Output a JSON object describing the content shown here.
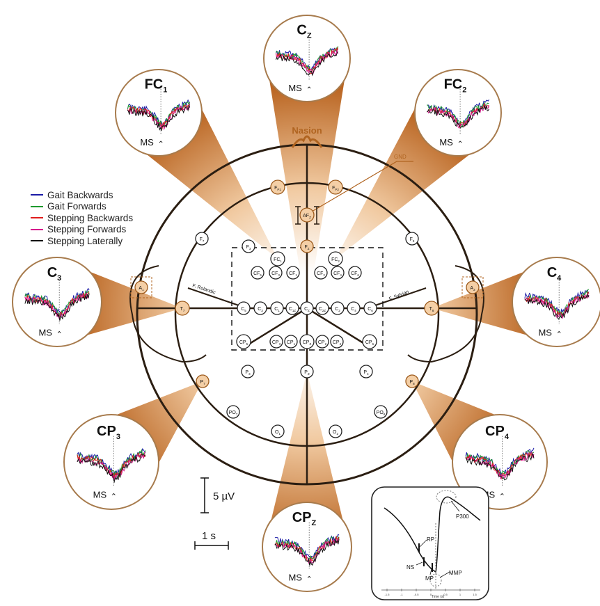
{
  "title": "",
  "legend": [
    {
      "label": "Gait Backwards",
      "color": "#1a1aa6"
    },
    {
      "label": "Gait Forwards",
      "color": "#1e9a2e"
    },
    {
      "label": "Stepping Backwards",
      "color": "#e01b1b"
    },
    {
      "label": "Stepping Forwards",
      "color": "#d6188c"
    },
    {
      "label": "Stepping Laterally",
      "color": "#111111"
    }
  ],
  "colors": {
    "accent": "#c1641c",
    "accent_light": "#f2d2b2",
    "ring": "#3a2a1a",
    "circle_border": "#a87a4a"
  },
  "head": {
    "nasion_label": "Nasion",
    "gnd_label": "GND",
    "rolandic_left": "F. Rolandic",
    "rolandic_right": "F. Sylvian"
  },
  "electrodes": {
    "fp1": {
      "main": "F",
      "sub": "P1"
    },
    "fp2": {
      "main": "F",
      "sub": "P2"
    },
    "afz": {
      "main": "AF",
      "sub": "Z"
    },
    "f7": {
      "main": "F",
      "sub": "7"
    },
    "f3": {
      "main": "F",
      "sub": "3"
    },
    "fz": {
      "main": "F",
      "sub": "Z"
    },
    "f8": {
      "main": "F",
      "sub": "8"
    },
    "fc1": {
      "main": "FC",
      "sub": "1"
    },
    "fc2": {
      "main": "FC",
      "sub": "2"
    },
    "cf5": {
      "main": "CF",
      "sub": "5"
    },
    "cf3": {
      "main": "CF",
      "sub": "3"
    },
    "cf1": {
      "main": "CF",
      "sub": "1"
    },
    "cf2": {
      "main": "CF",
      "sub": "2"
    },
    "cf4": {
      "main": "CF",
      "sub": "4"
    },
    "cf6": {
      "main": "CF",
      "sub": "6"
    },
    "t7": {
      "main": "T",
      "sub": "7"
    },
    "c5": {
      "main": "C",
      "sub": "5"
    },
    "c3": {
      "main": "C",
      "sub": "3"
    },
    "c1": {
      "main": "C",
      "sub": "1"
    },
    "c1z": {
      "main": "C",
      "sub": "1Z"
    },
    "cz": {
      "main": "C",
      "sub": "Z"
    },
    "c2z": {
      "main": "C",
      "sub": "2Z"
    },
    "c2": {
      "main": "C",
      "sub": "2"
    },
    "c4": {
      "main": "C",
      "sub": "4"
    },
    "c6": {
      "main": "C",
      "sub": "6"
    },
    "t8": {
      "main": "T",
      "sub": "8"
    },
    "cp5": {
      "main": "CP",
      "sub": "5"
    },
    "cp3": {
      "main": "CP",
      "sub": "3"
    },
    "cp1": {
      "main": "CP",
      "sub": "1"
    },
    "cpz": {
      "main": "CP",
      "sub": "Z"
    },
    "cp2": {
      "main": "CP",
      "sub": "2"
    },
    "cp4": {
      "main": "CP",
      "sub": "4"
    },
    "cp6": {
      "main": "CP",
      "sub": "6"
    },
    "a1": {
      "main": "A",
      "sub": "1"
    },
    "a2": {
      "main": "A",
      "sub": "2"
    },
    "p7": {
      "main": "P",
      "sub": "7"
    },
    "p3": {
      "main": "P",
      "sub": "3"
    },
    "pz": {
      "main": "P",
      "sub": "Z"
    },
    "p4": {
      "main": "P",
      "sub": "4"
    },
    "p8": {
      "main": "P",
      "sub": "8"
    },
    "po7": {
      "main": "PO",
      "sub": "7"
    },
    "o1": {
      "main": "O",
      "sub": "1"
    },
    "o2": {
      "main": "O",
      "sub": "2"
    },
    "po8": {
      "main": "PO",
      "sub": "8"
    }
  },
  "panels": {
    "cz": {
      "main": "C",
      "sub": "Z",
      "ms": "MS"
    },
    "fc1": {
      "main": "FC",
      "sub": "1",
      "ms": "MS"
    },
    "fc2": {
      "main": "FC",
      "sub": "2",
      "ms": "MS"
    },
    "c3": {
      "main": "C",
      "sub": "3",
      "ms": "MS"
    },
    "c4": {
      "main": "C",
      "sub": "4",
      "ms": "MS"
    },
    "cp3": {
      "main": "CP",
      "sub": "3",
      "ms": "MS"
    },
    "cp4": {
      "main": "CP",
      "sub": "4",
      "ms": "MS"
    },
    "cpz": {
      "main": "CP",
      "sub": "Z",
      "ms": "MS"
    }
  },
  "scale": {
    "voltage": "5 µV",
    "time": "1 s"
  },
  "inset": {
    "labels": {
      "rp": "RP",
      "ns": "NS",
      "mp": "MP",
      "mmp": "MMP",
      "p300": "P300"
    },
    "xlabel": "Time (s)",
    "ticks": [
      "-1.5",
      "-1",
      "-0.5",
      "0",
      "0.5",
      "1",
      "1.5"
    ]
  }
}
